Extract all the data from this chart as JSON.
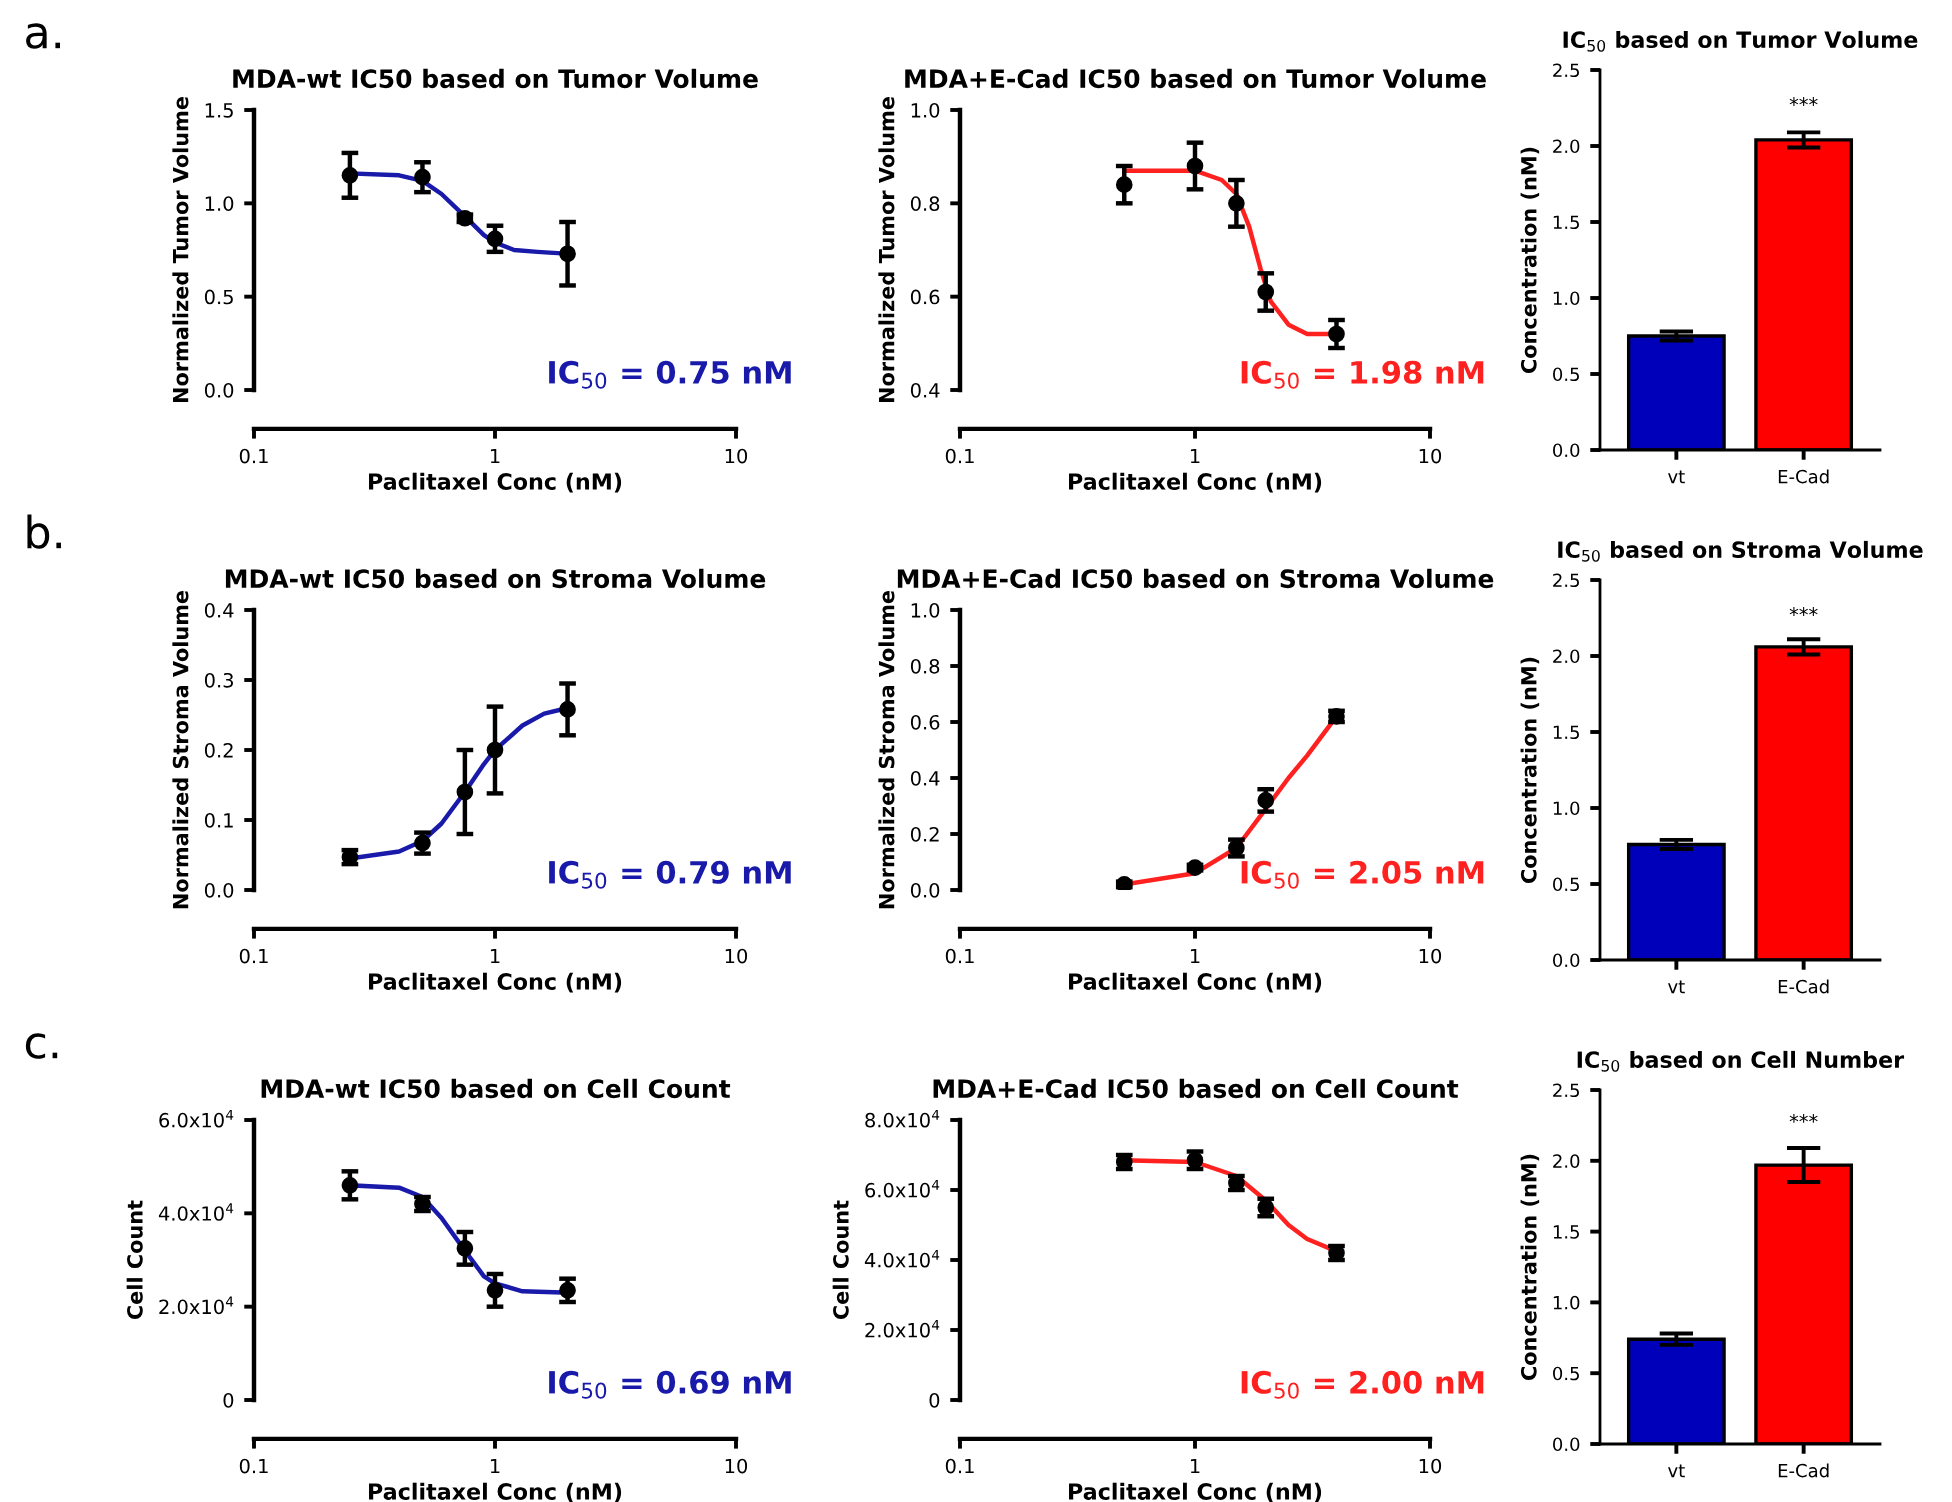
{
  "chart_data": [
    {
      "type": "scatter",
      "title": "MDA-wt IC50 based on Tumor Volume",
      "xlabel": "Paclitaxel Conc (nM)",
      "ylabel": "Normalized Tumor Volume",
      "log": "x",
      "xlim": [
        0.1,
        10
      ],
      "xticks": [
        0.1,
        1,
        10
      ],
      "ylim": [
        0,
        1.5
      ],
      "yticks": [
        {
          "value": 0,
          "label": "0.0"
        },
        0.5,
        {
          "value": 1,
          "label": "1.0"
        },
        1.5
      ],
      "annotations": [
        "a.",
        "IC$_{50}$ = 0.75 nM"
      ],
      "series": [
        {
          "type": "scatter",
          "marker": "circle",
          "color": "#000000",
          "x": [
            0.25,
            0.5,
            0.75,
            1,
            2
          ],
          "values": [
            1.15,
            1.14,
            0.92,
            0.81,
            0.73
          ],
          "errors": [
            0.12,
            0.08,
            0.02,
            0.07,
            0.17
          ]
        },
        {
          "type": "line",
          "color": "#1a1aaa",
          "x": [
            0.25,
            0.4,
            0.5,
            0.6,
            0.75,
            0.9,
            1.0,
            1.2,
            1.5,
            2
          ],
          "values": [
            1.16,
            1.15,
            1.12,
            1.05,
            0.93,
            0.83,
            0.79,
            0.75,
            0.74,
            0.73
          ]
        }
      ]
    },
    {
      "type": "scatter",
      "title": "MDA+E-Cad IC50 based on Tumor Volume",
      "xlabel": "Paclitaxel Conc (nM)",
      "ylabel": "Normalized Tumor Volume",
      "log": "x",
      "xlim": [
        0.1,
        10
      ],
      "xticks": [
        0.1,
        1,
        10
      ],
      "ylim": [
        0.4,
        1
      ],
      "yticks": [
        0.4,
        0.6,
        0.8,
        {
          "value": 1,
          "label": "1.0"
        }
      ],
      "annotations": [
        "IC$_{50}$ = 1.98 nM"
      ],
      "series": [
        {
          "type": "scatter",
          "marker": "circle",
          "color": "#000000",
          "x": [
            0.5,
            1,
            1.5,
            2,
            4
          ],
          "values": [
            0.84,
            0.88,
            0.8,
            0.61,
            0.52
          ],
          "errors": [
            0.04,
            0.05,
            0.05,
            0.04,
            0.03
          ]
        },
        {
          "type": "line",
          "color": "#ff2020",
          "x": [
            0.5,
            1,
            1.3,
            1.5,
            1.7,
            1.9,
            2.1,
            2.5,
            3,
            4
          ],
          "values": [
            0.87,
            0.87,
            0.85,
            0.82,
            0.75,
            0.66,
            0.59,
            0.54,
            0.52,
            0.52
          ]
        }
      ]
    },
    {
      "type": "bar",
      "title": "IC$_{50}$ based on Tumor Volume",
      "ylabel": "Concentration (nM)",
      "categories": [
        "vt",
        "E-Cad"
      ],
      "values": [
        0.75,
        2.04
      ],
      "errors": [
        0.03,
        0.05
      ],
      "colors": [
        "#0000bb",
        "#ff0000"
      ],
      "ylim": [
        0,
        2.5
      ],
      "yticks": [
        {
          "value": 0,
          "label": "0.0"
        },
        0.5,
        {
          "value": 1,
          "label": "1.0"
        },
        1.5,
        {
          "value": 2,
          "label": "2.0"
        },
        2.5
      ],
      "annotations": [
        "***"
      ]
    },
    {
      "type": "scatter",
      "title": "MDA-wt IC50 based on Stroma Volume",
      "xlabel": "Paclitaxel Conc (nM)",
      "ylabel": "Normalized Stroma Volume",
      "log": "x",
      "xlim": [
        0.1,
        10
      ],
      "xticks": [
        0.1,
        1,
        10
      ],
      "ylim": [
        0,
        0.4
      ],
      "yticks": [
        {
          "value": 0,
          "label": "0.0"
        },
        0.1,
        0.2,
        0.3,
        0.4
      ],
      "annotations": [
        "b.",
        "IC$_{50}$ = 0.79 nM"
      ],
      "series": [
        {
          "type": "scatter",
          "marker": "circle",
          "color": "#000000",
          "x": [
            0.25,
            0.5,
            0.75,
            1,
            2
          ],
          "values": [
            0.047,
            0.067,
            0.14,
            0.2,
            0.258
          ],
          "errors": [
            0.01,
            0.015,
            0.06,
            0.062,
            0.037
          ]
        },
        {
          "type": "line",
          "color": "#1a1aaa",
          "x": [
            0.25,
            0.4,
            0.5,
            0.6,
            0.75,
            0.9,
            1,
            1.3,
            1.6,
            2
          ],
          "values": [
            0.045,
            0.055,
            0.07,
            0.095,
            0.14,
            0.18,
            0.2,
            0.235,
            0.252,
            0.26
          ]
        }
      ]
    },
    {
      "type": "scatter",
      "title": "MDA+E-Cad IC50 based on Stroma Volume",
      "xlabel": "Paclitaxel Conc (nM)",
      "ylabel": "Normalized Stroma Volume",
      "log": "x",
      "xlim": [
        0.1,
        10
      ],
      "xticks": [
        0.1,
        1,
        10
      ],
      "ylim": [
        0,
        1
      ],
      "yticks": [
        {
          "value": 0,
          "label": "0.0"
        },
        0.2,
        0.4,
        0.6,
        0.8,
        {
          "value": 1,
          "label": "1.0"
        }
      ],
      "annotations": [
        "IC$_{50}$ = 2.05 nM"
      ],
      "series": [
        {
          "type": "scatter",
          "marker": "circle",
          "color": "#000000",
          "x": [
            0.5,
            1,
            1.5,
            2,
            4
          ],
          "values": [
            0.02,
            0.08,
            0.15,
            0.32,
            0.62
          ],
          "errors": [
            0.01,
            0.01,
            0.03,
            0.04,
            0.02
          ]
        },
        {
          "type": "line",
          "color": "#ff2020",
          "x": [
            0.5,
            1,
            1.5,
            2,
            2.5,
            3,
            4
          ],
          "values": [
            0.02,
            0.06,
            0.15,
            0.29,
            0.4,
            0.48,
            0.62
          ]
        }
      ]
    },
    {
      "type": "bar",
      "title": "IC$_{50}$ based on Stroma Volume",
      "ylabel": "Concentration (nM)",
      "categories": [
        "vt",
        "E-Cad"
      ],
      "values": [
        0.76,
        2.06
      ],
      "errors": [
        0.03,
        0.05
      ],
      "colors": [
        "#0000bb",
        "#ff0000"
      ],
      "ylim": [
        0,
        2.5
      ],
      "yticks": [
        {
          "value": 0,
          "label": "0.0"
        },
        0.5,
        {
          "value": 1,
          "label": "1.0"
        },
        1.5,
        {
          "value": 2,
          "label": "2.0"
        },
        2.5
      ],
      "annotations": [
        "***"
      ]
    },
    {
      "type": "scatter",
      "title": "MDA-wt IC50 based on Cell Count",
      "xlabel": "Paclitaxel Conc (nM)",
      "ylabel": "Cell Count",
      "log": "x",
      "xlim": [
        0.1,
        10
      ],
      "xticks": [
        0.1,
        1,
        10
      ],
      "ylim": [
        0,
        60000
      ],
      "yticks": [
        0,
        {
          "value": 20000,
          "label": "2.0x10$^{4}$"
        },
        {
          "value": 40000,
          "label": "4.0x10$^{4}$"
        },
        {
          "value": 60000,
          "label": "6.0x10$^{4}$"
        }
      ],
      "annotations": [
        "c.",
        "IC$_{50}$ = 0.69 nM"
      ],
      "series": [
        {
          "type": "scatter",
          "marker": "circle",
          "color": "#000000",
          "x": [
            0.25,
            0.5,
            0.75,
            1,
            2
          ],
          "values": [
            46000,
            42000,
            32500,
            23500,
            23500
          ],
          "errors": [
            3000,
            1500,
            3500,
            3500,
            2500
          ]
        },
        {
          "type": "line",
          "color": "#1a1aaa",
          "x": [
            0.25,
            0.4,
            0.5,
            0.6,
            0.75,
            0.9,
            1,
            1.3,
            2
          ],
          "values": [
            46000,
            45500,
            43500,
            39000,
            32000,
            26500,
            25000,
            23300,
            23000
          ]
        }
      ]
    },
    {
      "type": "scatter",
      "title": "MDA+E-Cad IC50 based on Cell Count",
      "xlabel": "Paclitaxel Conc (nM)",
      "ylabel": "Cell Count",
      "log": "x",
      "xlim": [
        0.1,
        10
      ],
      "xticks": [
        0.1,
        1,
        10
      ],
      "ylim": [
        0,
        80000
      ],
      "yticks": [
        0,
        {
          "value": 20000,
          "label": "2.0x10$^{4}$"
        },
        {
          "value": 40000,
          "label": "4.0x10$^{4}$"
        },
        {
          "value": 60000,
          "label": "6.0x10$^{4}$"
        },
        {
          "value": 80000,
          "label": "8.0x10$^{4}$"
        }
      ],
      "annotations": [
        "IC$_{50}$ = 2.00 nM"
      ],
      "series": [
        {
          "type": "scatter",
          "marker": "circle",
          "color": "#000000",
          "x": [
            0.5,
            1,
            1.5,
            2,
            4
          ],
          "values": [
            68000,
            68500,
            62000,
            55000,
            42000
          ],
          "errors": [
            2000,
            2500,
            2000,
            2500,
            2000
          ]
        },
        {
          "type": "line",
          "color": "#ff2020",
          "x": [
            0.5,
            1,
            1.5,
            2,
            2.5,
            3,
            4
          ],
          "values": [
            68500,
            68000,
            64000,
            57000,
            50000,
            46000,
            42500
          ]
        }
      ]
    },
    {
      "type": "bar",
      "title": "IC$_{50}$ based on Cell Number",
      "ylabel": "Concentration (nM)",
      "categories": [
        "vt",
        "E-Cad"
      ],
      "values": [
        0.74,
        1.97
      ],
      "errors": [
        0.04,
        0.12
      ],
      "colors": [
        "#0000bb",
        "#ff0000"
      ],
      "ylim": [
        0,
        2.5
      ],
      "yticks": [
        {
          "value": 0,
          "label": "0.0"
        },
        0.5,
        {
          "value": 1,
          "label": "1.0"
        },
        1.5,
        {
          "value": 2,
          "label": "2.0"
        },
        2.5
      ],
      "annotations": [
        "***"
      ]
    }
  ]
}
